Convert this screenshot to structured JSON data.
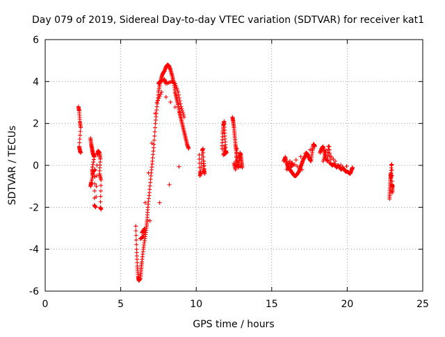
{
  "chart_data": {
    "type": "scatter",
    "title": "Day 079 of 2019, Sidereal Day-to-day VTEC variation (SDTVAR) for receiver kat1",
    "xlabel": "GPS time / hours",
    "ylabel": "SDTVAR / TECUs",
    "xlim": [
      0,
      25
    ],
    "ylim": [
      -6,
      6
    ],
    "xticks": [
      0,
      5,
      10,
      15,
      20,
      25
    ],
    "yticks": [
      -6,
      -4,
      -2,
      0,
      2,
      4,
      6
    ],
    "xtick_labels": [
      "0",
      "5",
      "10",
      "15",
      "20",
      "25"
    ],
    "ytick_labels": [
      "-6",
      "-4",
      "-2",
      "0",
      "2",
      "4",
      "6"
    ],
    "grid": true,
    "marker": "+",
    "color": "#ff0000",
    "series": [
      {
        "name": "kat1",
        "segments": [
          {
            "points": [
              [
                2.2,
                2.8
              ],
              [
                2.25,
                2.6
              ],
              [
                2.3,
                2.1
              ],
              [
                2.35,
                1.8
              ],
              [
                2.25,
                0.9
              ],
              [
                2.3,
                0.7
              ],
              [
                2.35,
                0.6
              ]
            ]
          },
          {
            "points": [
              [
                3.0,
                1.3
              ],
              [
                3.05,
                1.0
              ],
              [
                3.1,
                0.8
              ],
              [
                3.15,
                0.6
              ],
              [
                3.2,
                0.5
              ],
              [
                3.25,
                0.4
              ],
              [
                3.1,
                -0.2
              ],
              [
                3.15,
                -0.5
              ],
              [
                3.0,
                -1.0
              ],
              [
                3.05,
                -0.8
              ],
              [
                3.2,
                -0.3
              ],
              [
                3.3,
                -0.2
              ],
              [
                3.25,
                -1.9
              ],
              [
                3.35,
                -2.0
              ],
              [
                3.45,
                0.5
              ],
              [
                3.5,
                0.7
              ],
              [
                3.6,
                0.6
              ],
              [
                3.65,
                0.3
              ],
              [
                3.6,
                -0.4
              ],
              [
                3.7,
                -0.7
              ],
              [
                3.65,
                -2.0
              ],
              [
                3.7,
                -2.1
              ]
            ]
          },
          {
            "points": [
              [
                6.0,
                -2.9
              ],
              [
                6.05,
                -4.0
              ],
              [
                6.1,
                -4.8
              ],
              [
                6.15,
                -5.3
              ],
              [
                6.2,
                -5.5
              ],
              [
                6.3,
                -5.4
              ],
              [
                6.35,
                -5.0
              ],
              [
                6.4,
                -4.6
              ],
              [
                6.5,
                -4.0
              ],
              [
                6.6,
                -3.5
              ],
              [
                6.7,
                -3.0
              ],
              [
                6.75,
                -2.6
              ],
              [
                6.8,
                -2.0
              ],
              [
                6.9,
                -1.3
              ],
              [
                7.0,
                -0.5
              ],
              [
                7.1,
                0.2
              ],
              [
                7.2,
                1.0
              ],
              [
                7.3,
                2.0
              ],
              [
                7.4,
                2.8
              ],
              [
                7.5,
                3.5
              ],
              [
                7.6,
                3.9
              ],
              [
                7.7,
                4.2
              ],
              [
                7.8,
                4.4
              ],
              [
                7.9,
                4.5
              ],
              [
                8.0,
                4.7
              ],
              [
                8.1,
                4.8
              ],
              [
                8.2,
                4.75
              ],
              [
                8.3,
                4.55
              ],
              [
                8.4,
                4.3
              ],
              [
                8.5,
                4.0
              ],
              [
                8.6,
                3.5
              ],
              [
                8.7,
                3.2
              ],
              [
                8.8,
                2.9
              ],
              [
                8.9,
                2.5
              ],
              [
                9.0,
                2.2
              ],
              [
                9.1,
                1.9
              ],
              [
                9.2,
                1.6
              ],
              [
                9.3,
                1.3
              ],
              [
                9.4,
                1.0
              ],
              [
                9.5,
                0.8
              ],
              [
                6.3,
                -3.5
              ],
              [
                6.5,
                -3.4
              ],
              [
                6.6,
                -3.0
              ],
              [
                6.4,
                -3.2
              ],
              [
                7.5,
                3.9
              ],
              [
                7.6,
                4.0
              ],
              [
                7.9,
                4.1
              ],
              [
                8.0,
                3.9
              ],
              [
                8.4,
                4.0
              ],
              [
                8.6,
                3.9
              ],
              [
                8.8,
                3.5
              ],
              [
                9.0,
                2.8
              ],
              [
                9.2,
                2.3
              ],
              [
                7.7,
                3.5
              ],
              [
                7.4,
                3.0
              ]
            ]
          },
          {
            "points": [
              [
                10.2,
                0.5
              ],
              [
                10.25,
                -0.5
              ],
              [
                10.3,
                -0.3
              ],
              [
                10.4,
                0.7
              ],
              [
                10.45,
                0.8
              ],
              [
                10.5,
                -0.2
              ],
              [
                10.55,
                -0.4
              ],
              [
                10.5,
                0.2
              ]
            ]
          },
          {
            "points": [
              [
                11.7,
                0.8
              ],
              [
                11.75,
                1.5
              ],
              [
                11.8,
                1.9
              ],
              [
                11.85,
                2.1
              ],
              [
                11.9,
                1.4
              ],
              [
                11.95,
                0.7
              ],
              [
                12.0,
                0.6
              ],
              [
                11.8,
                0.5
              ],
              [
                11.9,
                0.9
              ]
            ]
          },
          {
            "points": [
              [
                12.4,
                2.3
              ],
              [
                12.45,
                2.1
              ],
              [
                12.5,
                1.8
              ],
              [
                12.55,
                1.4
              ],
              [
                12.6,
                1.0
              ],
              [
                12.65,
                0.7
              ],
              [
                12.7,
                0.3
              ],
              [
                12.75,
                0.0
              ],
              [
                12.8,
                -0.1
              ],
              [
                12.85,
                0.3
              ],
              [
                12.9,
                0.6
              ],
              [
                12.95,
                0.5
              ],
              [
                13.0,
                0.2
              ],
              [
                13.05,
                -0.1
              ],
              [
                12.5,
                0.1
              ],
              [
                12.6,
                -0.2
              ],
              [
                12.7,
                0.8
              ]
            ]
          },
          {
            "points": [
              [
                15.8,
                0.2
              ],
              [
                15.9,
                0.4
              ],
              [
                16.0,
                0.1
              ],
              [
                16.1,
                -0.1
              ],
              [
                16.2,
                -0.2
              ],
              [
                16.3,
                -0.3
              ],
              [
                16.4,
                -0.4
              ],
              [
                16.5,
                -0.5
              ],
              [
                16.6,
                -0.5
              ],
              [
                16.7,
                -0.4
              ],
              [
                16.8,
                -0.3
              ],
              [
                16.9,
                -0.1
              ],
              [
                17.0,
                0.1
              ],
              [
                17.1,
                0.3
              ],
              [
                17.2,
                0.4
              ],
              [
                17.3,
                0.6
              ],
              [
                17.4,
                0.5
              ],
              [
                17.5,
                0.3
              ],
              [
                17.6,
                0.2
              ],
              [
                17.7,
                0.7
              ],
              [
                17.75,
                1.0
              ],
              [
                17.8,
                1.0
              ],
              [
                17.85,
                0.9
              ],
              [
                16.3,
                0.1
              ],
              [
                16.4,
                0.0
              ],
              [
                16.0,
                -0.2
              ],
              [
                16.2,
                0.2
              ],
              [
                17.0,
                -0.2
              ]
            ]
          },
          {
            "points": [
              [
                18.2,
                0.6
              ],
              [
                18.3,
                0.8
              ],
              [
                18.4,
                0.9
              ],
              [
                18.5,
                0.6
              ],
              [
                18.6,
                0.3
              ],
              [
                18.7,
                0.2
              ],
              [
                18.75,
                0.9
              ],
              [
                18.8,
                0.9
              ],
              [
                18.9,
                0.1
              ],
              [
                19.0,
                0.0
              ],
              [
                19.1,
                0.05
              ],
              [
                19.2,
                0.0
              ],
              [
                19.3,
                -0.1
              ],
              [
                19.4,
                0.0
              ],
              [
                19.5,
                -0.1
              ],
              [
                19.6,
                -0.2
              ],
              [
                19.7,
                -0.1
              ],
              [
                19.8,
                -0.2
              ],
              [
                19.9,
                -0.3
              ],
              [
                20.0,
                -0.3
              ],
              [
                20.1,
                -0.35
              ],
              [
                20.2,
                -0.4
              ],
              [
                20.3,
                -0.2
              ],
              [
                20.35,
                -0.1
              ],
              [
                18.4,
                0.2
              ],
              [
                18.6,
                0.7
              ],
              [
                19.2,
                0.2
              ]
            ]
          },
          {
            "points": [
              [
                22.8,
                -1.6
              ],
              [
                22.82,
                -1.2
              ],
              [
                22.85,
                -0.8
              ],
              [
                22.88,
                -0.4
              ],
              [
                22.9,
                -0.6
              ],
              [
                22.92,
                0.0
              ],
              [
                22.95,
                0.05
              ],
              [
                22.98,
                -1.3
              ],
              [
                23.0,
                -1.0
              ],
              [
                22.95,
                -0.9
              ]
            ]
          }
        ]
      }
    ]
  }
}
